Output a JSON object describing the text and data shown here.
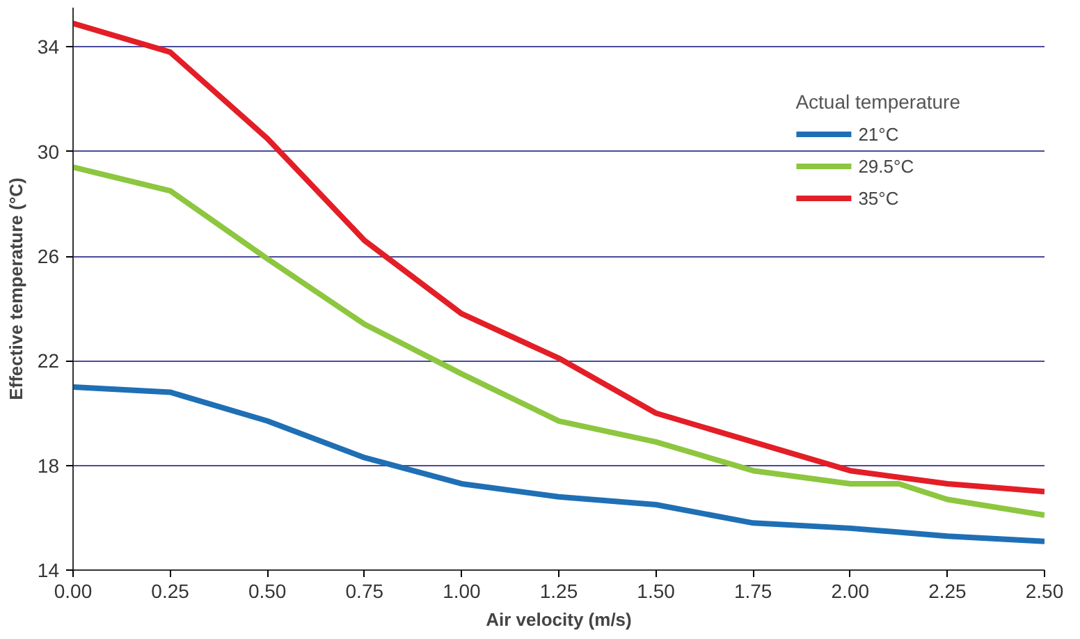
{
  "chart_data": {
    "type": "line",
    "xlabel": "Air velocity (m/s)",
    "ylabel": "Effective temperature (°C)",
    "legend_title": "Actual temperature",
    "legend": "top right",
    "grid": "y",
    "xlim": [
      0,
      2.5
    ],
    "ylim": [
      14,
      35.5
    ],
    "xticks": [
      {
        "value": 0,
        "label": "0.00"
      },
      {
        "value": 0.25,
        "label": "0.25"
      },
      {
        "value": 0.5,
        "label": "0.50"
      },
      {
        "value": 0.75,
        "label": "0.75"
      },
      {
        "value": 1,
        "label": "1.00"
      },
      {
        "value": 1.25,
        "label": "1.25"
      },
      {
        "value": 1.5,
        "label": "1.50"
      },
      {
        "value": 1.75,
        "label": "1.75"
      },
      {
        "value": 2,
        "label": "2.00"
      },
      {
        "value": 2.25,
        "label": "2.25"
      },
      {
        "value": 2.5,
        "label": "2.50"
      }
    ],
    "yticks": [
      14,
      18,
      22,
      26,
      30,
      34
    ],
    "series": [
      {
        "name": "21°C",
        "color": "#1f6fb5",
        "x": [
          0,
          0.25,
          0.5,
          0.75,
          1,
          1.25,
          1.5,
          1.75,
          2,
          2.25,
          2.5
        ],
        "values": [
          21.0,
          20.8,
          19.7,
          18.3,
          17.3,
          16.8,
          16.5,
          15.8,
          15.6,
          15.3,
          15.1
        ]
      },
      {
        "name": "29.5°C",
        "color": "#8dc63f",
        "x": [
          0,
          0.25,
          0.5,
          0.75,
          1,
          1.25,
          1.5,
          1.75,
          2,
          2.125,
          2.25,
          2.5
        ],
        "values": [
          29.4,
          28.5,
          25.9,
          23.4,
          21.5,
          19.7,
          18.9,
          17.8,
          17.3,
          17.3,
          16.7,
          16.1
        ]
      },
      {
        "name": "35°C",
        "color": "#e31e26",
        "x": [
          0,
          0.25,
          0.5,
          0.75,
          1,
          1.25,
          1.5,
          1.75,
          2,
          2.25,
          2.5
        ],
        "values": [
          34.9,
          33.8,
          30.5,
          26.6,
          23.8,
          22.1,
          20.0,
          18.9,
          17.8,
          17.3,
          17.0
        ]
      }
    ]
  }
}
